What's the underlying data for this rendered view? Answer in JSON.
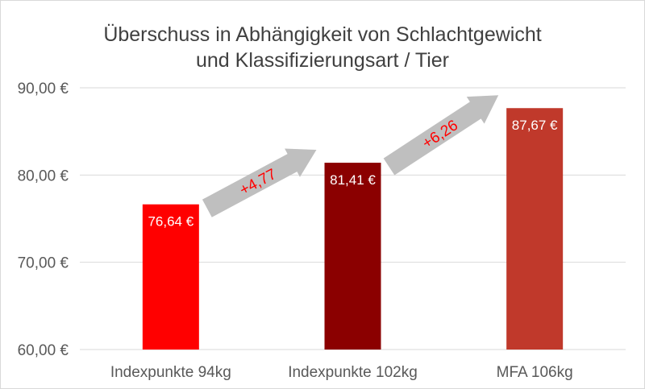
{
  "chart_data": {
    "type": "bar",
    "title": [
      "Überschuss in Abhängigkeit von Schlachtgewicht",
      "und Klassifizierungsart / Tier"
    ],
    "categories": [
      "Indexpunkte 94kg",
      "Indexpunkte 102kg",
      "MFA 106kg"
    ],
    "values": [
      76.64,
      81.41,
      87.67
    ],
    "value_labels": [
      "76,64 €",
      "81,41 €",
      "87,67 €"
    ],
    "bar_colors": [
      "#ff0000",
      "#8b0000",
      "#c0392b"
    ],
    "ylim": [
      60,
      90
    ],
    "y_ticks": [
      60,
      70,
      80,
      90
    ],
    "y_tick_labels": [
      "60,00 €",
      "70,00 €",
      "80,00 €",
      "90,00 €"
    ],
    "grid": true,
    "legend": "none",
    "annotations": [
      {
        "text": "+4,77",
        "from": 0,
        "to": 1
      },
      {
        "text": "+6,26",
        "from": 1,
        "to": 2
      }
    ],
    "colors": {
      "arrow": "#bfbfbf",
      "annotation_text": "#ff0000",
      "value_label": "#ffffff",
      "axis_text": "#595959",
      "title": "#404040",
      "grid": "#d9d9d9"
    }
  }
}
